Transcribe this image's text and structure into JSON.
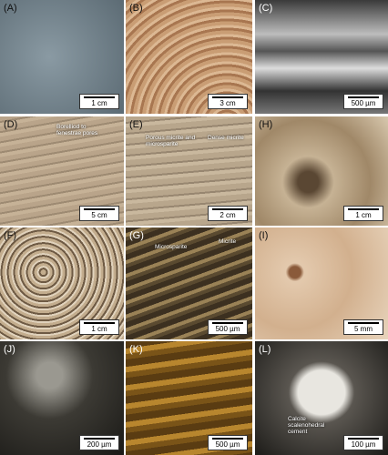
{
  "panels": [
    {
      "label": "(A)",
      "scale_bar": "1 cm"
    },
    {
      "label": "(B)",
      "scale_bar": "3 cm"
    },
    {
      "label": "(C)",
      "scale_bar": "500 µm"
    },
    {
      "label": "(D)",
      "scale_bar": "5 cm",
      "annotations": [
        "Borelliod to fenestrae pores"
      ]
    },
    {
      "label": "(E)",
      "scale_bar": "2 cm",
      "annotations": [
        "Porous micrite and microsparite",
        "Dense micrite"
      ]
    },
    {
      "label": "(H)",
      "scale_bar": "1 cm"
    },
    {
      "label": "(F)",
      "scale_bar": "1 cm"
    },
    {
      "label": "(G)",
      "scale_bar": "500 µm",
      "annotations": [
        "Microsparite",
        "Micrite"
      ]
    },
    {
      "label": "(I)",
      "scale_bar": "5 mm"
    },
    {
      "label": "(J)",
      "scale_bar": "200 µm"
    },
    {
      "label": "(K)",
      "scale_bar": "500 µm"
    },
    {
      "label": "(L)",
      "scale_bar": "100 µm",
      "annotations": [
        "Calcite scalenohedral cement"
      ]
    }
  ]
}
